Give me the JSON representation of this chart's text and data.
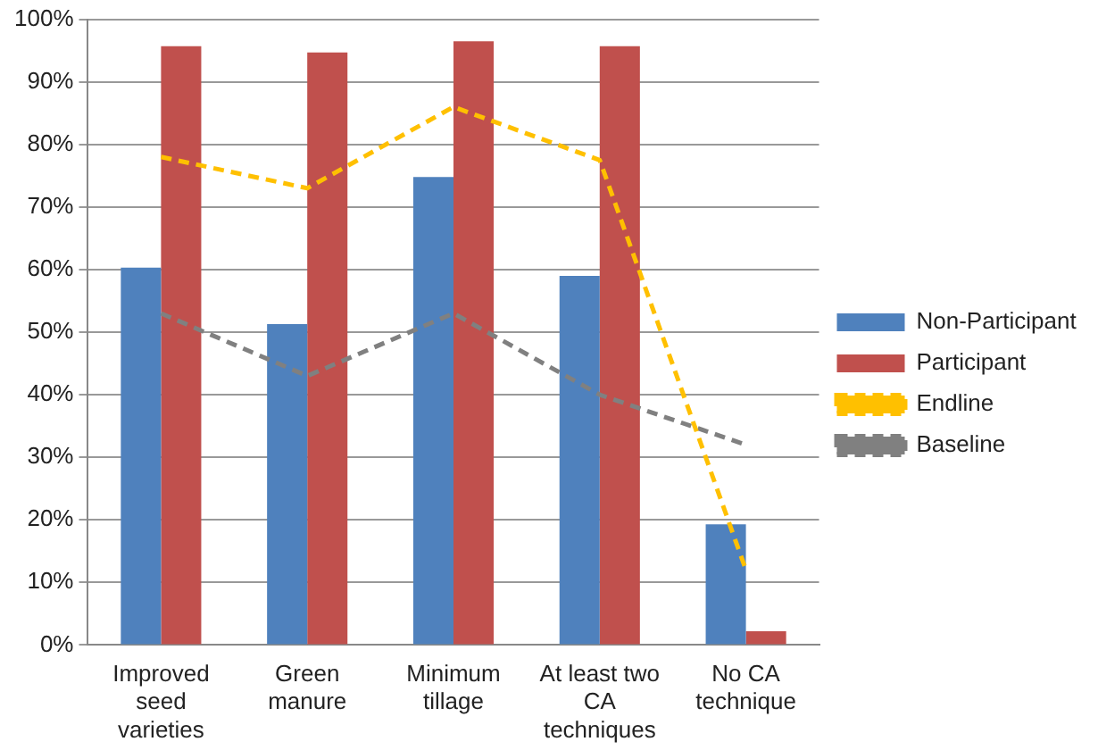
{
  "chart_data": {
    "type": "bar",
    "categories": [
      "Improved seed varieties",
      "Green manure",
      "Minimum tillage",
      "At least two CA techniques",
      "No CA technique"
    ],
    "series": [
      {
        "name": "Non-Participant",
        "color": "#4f81bd",
        "values": [
          60.3,
          51.3,
          74.8,
          59,
          19.3
        ]
      },
      {
        "name": "Participant",
        "color": "#c0504d",
        "values": [
          95.7,
          94.7,
          96.5,
          95.7,
          2.2
        ]
      },
      {
        "name": "Endline",
        "type": "line",
        "color": "#ffc000",
        "line_style": "dashed",
        "marker": "none",
        "values": [
          78,
          73,
          86,
          77.5,
          12
        ]
      },
      {
        "name": "Baseline",
        "type": "line",
        "color": "#808080",
        "line_style": "dashed",
        "marker": "none",
        "values": [
          53,
          43,
          53,
          40,
          32
        ]
      }
    ],
    "ylim": [
      0,
      100
    ],
    "yticks": [
      {
        "value": 0,
        "label": "0%"
      },
      {
        "value": 10,
        "label": "10%"
      },
      {
        "value": 20,
        "label": "20%"
      },
      {
        "value": 30,
        "label": "30%"
      },
      {
        "value": 40,
        "label": "40%"
      },
      {
        "value": 50,
        "label": "50%"
      },
      {
        "value": 60,
        "label": "60%"
      },
      {
        "value": 70,
        "label": "70%"
      },
      {
        "value": 80,
        "label": "80%"
      },
      {
        "value": 90,
        "label": "90%"
      },
      {
        "value": 100,
        "label": "100%"
      }
    ],
    "grid": "y",
    "legend": "right"
  }
}
